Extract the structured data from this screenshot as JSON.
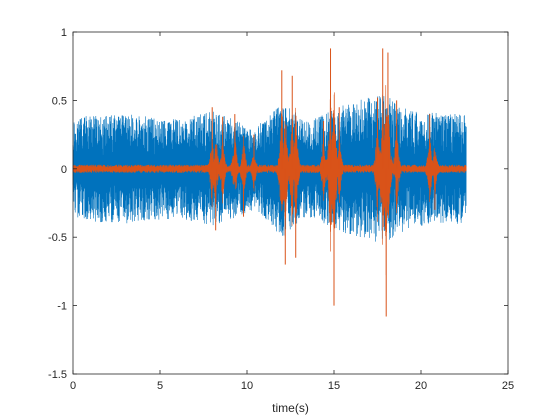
{
  "chart_data": {
    "type": "line",
    "title": "",
    "xlabel": "time(s)",
    "ylabel": "",
    "xlim": [
      0,
      25
    ],
    "ylim": [
      -1.5,
      1
    ],
    "x_ticks": [
      "0",
      "5",
      "10",
      "15",
      "20",
      "25"
    ],
    "y_ticks": [
      "1",
      "0.5",
      "0",
      "-0.5",
      "-1",
      "-1.5"
    ],
    "grid": false,
    "legend": "none",
    "series": [
      {
        "color": "#0072BD",
        "x_range": [
          0,
          22.6
        ],
        "base_amplitude": 0.38,
        "envelope": [
          {
            "x": 0,
            "y": 0.38
          },
          {
            "x": 3,
            "y": 0.4
          },
          {
            "x": 6,
            "y": 0.36
          },
          {
            "x": 8,
            "y": 0.42
          },
          {
            "x": 10.5,
            "y": 0.3
          },
          {
            "x": 12,
            "y": 0.5
          },
          {
            "x": 13.5,
            "y": 0.35
          },
          {
            "x": 15,
            "y": 0.45
          },
          {
            "x": 17.8,
            "y": 0.55
          },
          {
            "x": 19.5,
            "y": 0.42
          },
          {
            "x": 22.6,
            "y": 0.4
          }
        ]
      },
      {
        "color": "#D95319",
        "x_range": [
          0,
          22.6
        ],
        "base_amplitude": 0.03,
        "peaks": [
          {
            "x": 8.0,
            "y": 0.45
          },
          {
            "x": 8.2,
            "y": -0.45
          },
          {
            "x": 8.6,
            "y": 0.38
          },
          {
            "x": 9.3,
            "y": 0.4
          },
          {
            "x": 9.8,
            "y": -0.35
          },
          {
            "x": 10.4,
            "y": 0.25
          },
          {
            "x": 12.0,
            "y": 0.72
          },
          {
            "x": 12.2,
            "y": -0.7
          },
          {
            "x": 12.6,
            "y": 0.68
          },
          {
            "x": 12.8,
            "y": -0.65
          },
          {
            "x": 14.4,
            "y": 0.35
          },
          {
            "x": 14.8,
            "y": 0.88
          },
          {
            "x": 15.0,
            "y": -1.0
          },
          {
            "x": 15.3,
            "y": 0.45
          },
          {
            "x": 17.5,
            "y": 0.52
          },
          {
            "x": 17.8,
            "y": 0.88
          },
          {
            "x": 18.0,
            "y": -1.08
          },
          {
            "x": 18.1,
            "y": 0.85
          },
          {
            "x": 18.6,
            "y": 0.5
          },
          {
            "x": 20.5,
            "y": 0.4
          },
          {
            "x": 20.8,
            "y": -0.3
          }
        ]
      }
    ]
  }
}
